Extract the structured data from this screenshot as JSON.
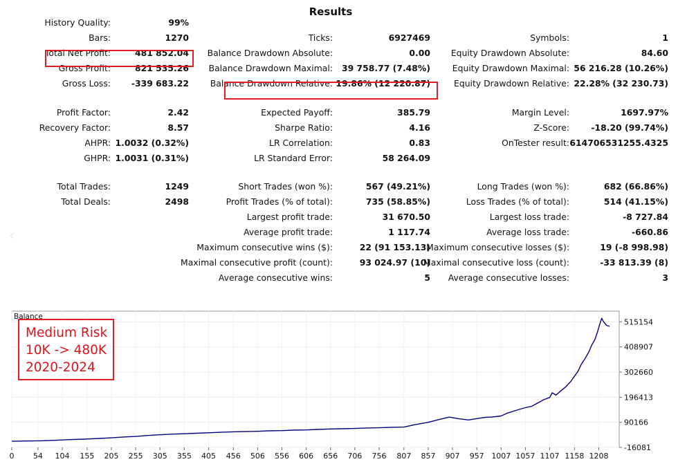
{
  "title": "Results",
  "stats": {
    "col1": [
      {
        "label": "History Quality:",
        "value": "99%"
      },
      {
        "label": "Bars:",
        "value": "1270"
      },
      {
        "label": "Total Net Profit:",
        "value": "481 852.04"
      },
      {
        "label": "Gross Profit:",
        "value": "821 535.26"
      },
      {
        "label": "Gross Loss:",
        "value": "-339 683.22"
      },
      {
        "label": "Profit Factor:",
        "value": "2.42"
      },
      {
        "label": "Recovery Factor:",
        "value": "8.57"
      },
      {
        "label": "AHPR:",
        "value": "1.0032 (0.32%)"
      },
      {
        "label": "GHPR:",
        "value": "1.0031 (0.31%)"
      },
      {
        "label": "Total Trades:",
        "value": "1249"
      },
      {
        "label": "Total Deals:",
        "value": "2498"
      }
    ],
    "col2": [
      {
        "label": "Ticks:",
        "value": "6927469"
      },
      {
        "label": "Balance Drawdown Absolute:",
        "value": "0.00"
      },
      {
        "label": "Balance Drawdown Maximal:",
        "value": "39 758.77 (7.48%)"
      },
      {
        "label": "Balance Drawdown Relative:",
        "value": "19.86% (12 220.87)"
      },
      {
        "label": "Expected Payoff:",
        "value": "385.79"
      },
      {
        "label": "Sharpe Ratio:",
        "value": "4.16"
      },
      {
        "label": "LR Correlation:",
        "value": "0.83"
      },
      {
        "label": "LR Standard Error:",
        "value": "58 264.09"
      },
      {
        "label": "Short Trades (won %):",
        "value": "567 (49.21%)"
      },
      {
        "label": "Profit Trades (% of total):",
        "value": "735 (58.85%)"
      },
      {
        "label": "Largest profit trade:",
        "value": "31 670.50"
      },
      {
        "label": "Average profit trade:",
        "value": "1 117.74"
      },
      {
        "label": "Maximum consecutive wins ($):",
        "value": "22 (91 153.13)"
      },
      {
        "label": "Maximal consecutive profit (count):",
        "value": "93 024.97 (10)"
      },
      {
        "label": "Average consecutive wins:",
        "value": "5"
      }
    ],
    "col3": [
      {
        "label": "Symbols:",
        "value": "1"
      },
      {
        "label": "Equity Drawdown Absolute:",
        "value": "84.60"
      },
      {
        "label": "Equity Drawdown Maximal:",
        "value": "56 216.28 (10.26%)"
      },
      {
        "label": "Equity Drawdown Relative:",
        "value": "22.28% (32 230.73)"
      },
      {
        "label": "Margin Level:",
        "value": "1697.97%"
      },
      {
        "label": "Z-Score:",
        "value": "-18.20 (99.74%)"
      },
      {
        "label": "OnTester result:",
        "value": "614706531255.4325"
      },
      {
        "label": "Long Trades (won %):",
        "value": "682 (66.86%)"
      },
      {
        "label": "Loss Trades (% of total):",
        "value": "514 (41.15%)"
      },
      {
        "label": "Largest loss trade:",
        "value": "-8 727.84"
      },
      {
        "label": "Average loss trade:",
        "value": "-660.86"
      },
      {
        "label": "Maximum consecutive losses ($):",
        "value": "19 (-8 998.98)"
      },
      {
        "label": "Maximal consecutive loss (count):",
        "value": "-33 813.39 (8)"
      },
      {
        "label": "Average consecutive losses:",
        "value": "3"
      }
    ]
  },
  "highlight_color": "#e31b23",
  "annotation": {
    "lines": [
      "Medium Risk",
      "10K -> 480K",
      "2020-2024"
    ],
    "color": "#d9141c"
  },
  "icons": {
    "left_nav": "chevron-left-icon"
  },
  "chart_data": {
    "type": "line",
    "title": "Balance",
    "line_color": "#000080",
    "x_ticks": [
      0,
      54,
      104,
      155,
      205,
      255,
      305,
      355,
      405,
      456,
      506,
      556,
      606,
      656,
      706,
      756,
      807,
      857,
      907,
      957,
      1007,
      1057,
      1107,
      1158,
      1208
    ],
    "y_ticks": [
      515154,
      408907,
      302660,
      196413,
      90166,
      -16081
    ],
    "xlim": [
      0,
      1250
    ],
    "ylim": [
      -16081,
      560000
    ],
    "grid": true,
    "series": [
      {
        "x": [
          0,
          30,
          60,
          90,
          120,
          150,
          180,
          200,
          230,
          260,
          275,
          300,
          330,
          360,
          380,
          405,
          430,
          456,
          480,
          506,
          530,
          556,
          580,
          606,
          630,
          656,
          680,
          706,
          730,
          756,
          780,
          807,
          830,
          857,
          880,
          900,
          907,
          920,
          940,
          957,
          975,
          990,
          1007,
          1020,
          1035,
          1057,
          1070,
          1085,
          1095,
          1107,
          1112,
          1120,
          1130,
          1140,
          1150,
          1158,
          1165,
          1172,
          1180,
          1188,
          1193,
          1200,
          1205,
          1210,
          1214,
          1218,
          1224,
          1230
        ],
        "y": [
          10000,
          11000,
          12000,
          14000,
          17000,
          19000,
          22000,
          24000,
          28000,
          31000,
          34000,
          37000,
          40000,
          42000,
          44000,
          46000,
          48000,
          50000,
          51000,
          52000,
          54000,
          55000,
          57000,
          58000,
          60000,
          62000,
          63000,
          64000,
          66000,
          67000,
          69000,
          70000,
          80000,
          90000,
          102000,
          112000,
          110000,
          105000,
          100000,
          106000,
          111000,
          113000,
          117000,
          129000,
          139000,
          152000,
          158000,
          175000,
          186000,
          195000,
          215000,
          205000,
          223000,
          240000,
          262000,
          285000,
          305000,
          335000,
          360000,
          390000,
          415000,
          440000,
          470000,
          505000,
          530000,
          515000,
          500000,
          496000
        ]
      }
    ]
  }
}
